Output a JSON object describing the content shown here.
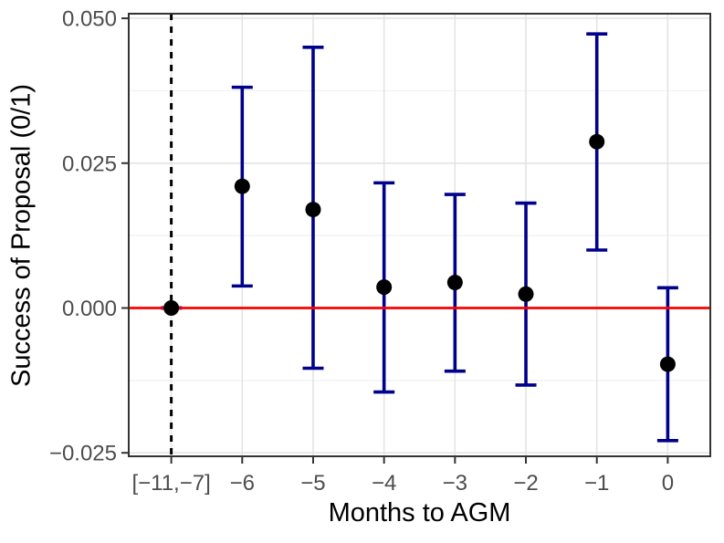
{
  "chart_data": {
    "type": "scatter",
    "subtype": "coefficient-plot-with-error-bars",
    "title": "",
    "xlabel": "Months to AGM",
    "ylabel": "Success of Proposal (0/1)",
    "categories": [
      "[−11,−7]",
      "−6",
      "−5",
      "−4",
      "−3",
      "−2",
      "−1",
      "0"
    ],
    "estimates": [
      0.0,
      0.021,
      0.017,
      0.0036,
      0.0044,
      0.0024,
      0.0287,
      -0.0097
    ],
    "ci_low": [
      0.0,
      0.0038,
      -0.0104,
      -0.0145,
      -0.0109,
      -0.0133,
      0.01,
      -0.0229
    ],
    "ci_high": [
      0.0,
      0.0381,
      0.045,
      0.0216,
      0.0196,
      0.0181,
      0.0473,
      0.0035
    ],
    "reference_category": "[−11,−7]",
    "reference_index": 0,
    "ylim": [
      -0.0256,
      0.0508
    ],
    "yticks": [
      {
        "value": 0.05,
        "label": "0.050"
      },
      {
        "value": 0.025,
        "label": "0.025"
      },
      {
        "value": 0.0,
        "label": "0.000"
      },
      {
        "value": -0.025,
        "label": "−0.025"
      }
    ],
    "yticks_minor": [
      0.0375,
      0.0125,
      -0.0125
    ],
    "hline": {
      "value": 0,
      "color": "#FF0000",
      "style": "solid"
    },
    "vline": {
      "at_category_index": 0,
      "color": "#000000",
      "style": "dashed"
    },
    "grid": "on",
    "legend": "none",
    "colors": {
      "errorbar": "#00008B",
      "point": "#000000",
      "grid_major": "#E4E4E4",
      "grid_minor": "#F1F1F1",
      "panel_border": "#333333",
      "tick": "#333333",
      "tick_label": "#4D4D4D",
      "axis_title": "#000000",
      "background": "#FFFFFF"
    }
  }
}
